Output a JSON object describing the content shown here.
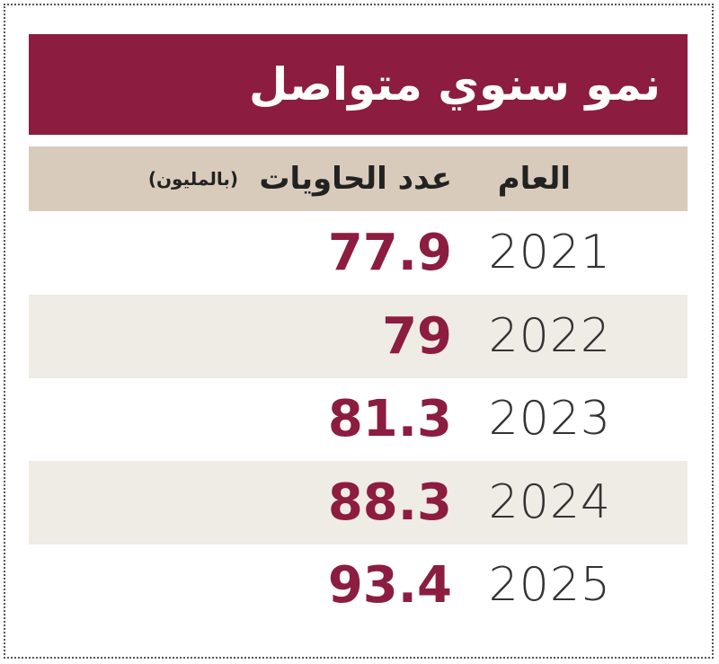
{
  "header": {
    "title": "نمو سنوي متواصل"
  },
  "table": {
    "columns": [
      "العام",
      "عدد الحاويات",
      "(بالمليون)"
    ],
    "rows": [
      [
        "2021",
        "77.9"
      ],
      [
        "2022",
        "79"
      ],
      [
        "2023",
        "81.3"
      ],
      [
        "2024",
        "88.3"
      ],
      [
        "2025",
        "93.4"
      ]
    ]
  }
}
